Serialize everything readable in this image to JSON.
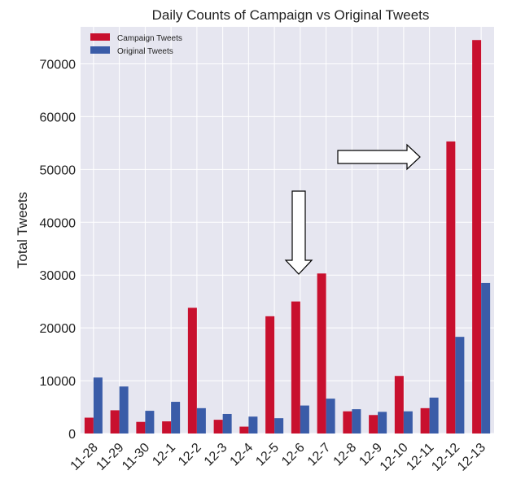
{
  "chart_data": {
    "type": "bar",
    "title": "Daily Counts of Campaign vs Original Tweets",
    "xlabel": "",
    "ylabel": "Total Tweets",
    "categories": [
      "11-28",
      "11-29",
      "11-30",
      "12-1",
      "12-2",
      "12-3",
      "12-4",
      "12-5",
      "12-6",
      "12-7",
      "12-8",
      "12-9",
      "12-10",
      "12-11",
      "12-12",
      "12-13"
    ],
    "series": [
      {
        "name": "Campaign Tweets",
        "color": "#c8102e",
        "values": [
          3000,
          4400,
          2200,
          2300,
          23800,
          2600,
          1300,
          22200,
          25000,
          30300,
          4200,
          3500,
          10900,
          4800,
          55300,
          74500
        ]
      },
      {
        "name": "Original Tweets",
        "color": "#3a5ca8",
        "values": [
          10600,
          8900,
          4300,
          6000,
          4800,
          3700,
          3200,
          2900,
          5300,
          6600,
          4600,
          4100,
          4200,
          6800,
          18300,
          28500
        ]
      }
    ],
    "ylim": [
      0,
      77000
    ],
    "yticks": [
      0,
      10000,
      20000,
      30000,
      40000,
      50000,
      60000,
      70000
    ],
    "grid": true,
    "legend_position": "top-left",
    "annotations": [
      {
        "type": "arrow",
        "direction": "down",
        "at_category": "12-6"
      },
      {
        "type": "arrow",
        "direction": "right",
        "toward_category": "12-12"
      }
    ],
    "background": "#e6e6f0"
  }
}
